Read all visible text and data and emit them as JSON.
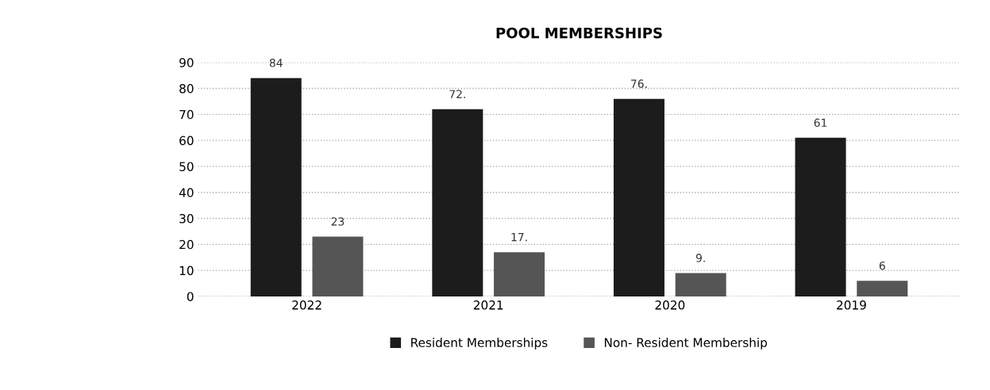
{
  "chart_data": {
    "type": "bar",
    "title": "POOL MEMBERSHIPS",
    "categories": [
      "2022",
      "2021",
      "2020",
      "2019"
    ],
    "series": [
      {
        "name": "Resident Memberships",
        "color": "#1c1c1c",
        "values": [
          84,
          72,
          76,
          61
        ],
        "value_labels": [
          "84",
          "72.",
          "76.",
          "61"
        ]
      },
      {
        "name": "Non- Resident Membership",
        "color": "#555555",
        "values": [
          23,
          17,
          9,
          6
        ],
        "value_labels": [
          "23",
          "17.",
          "9.",
          "6"
        ]
      }
    ],
    "ylim": [
      0,
      90
    ],
    "yticks": [
      0,
      10,
      20,
      30,
      40,
      50,
      60,
      70,
      80,
      90
    ],
    "grid": "y",
    "legend": "bottom"
  }
}
